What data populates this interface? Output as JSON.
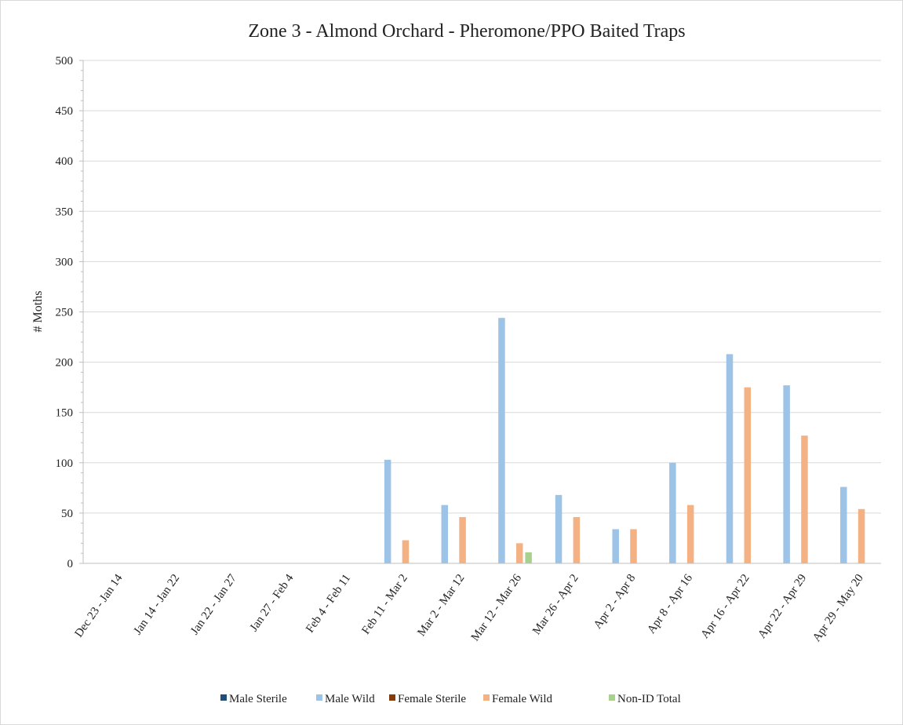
{
  "chart_data": {
    "type": "bar",
    "title": "Zone 3 - Almond Orchard - Pheromone/PPO Baited Traps",
    "ylabel": "# Moths",
    "xlabel": "",
    "ylim": [
      0,
      500
    ],
    "yticks": [
      0,
      50,
      100,
      150,
      200,
      250,
      300,
      350,
      400,
      450,
      500
    ],
    "grid": true,
    "legend_position": "bottom",
    "categories": [
      "Dec 23 - Jan 14",
      "Jan 14 - Jan 22",
      "Jan 22 - Jan 27",
      "Jan 27 - Feb 4",
      "Feb 4 - Feb 11",
      "Feb 11 - Mar 2",
      "Mar 2 - Mar 12",
      "Mar 12 - Mar 26",
      "Mar 26 - Apr 2",
      "Apr 2 - Apr 8",
      "Apr 8 - Apr 16",
      "Apr 16 - Apr 22",
      "Apr 22 - Apr 29",
      "Apr 29 - May 20"
    ],
    "series": [
      {
        "name": "Male Sterile",
        "color": "#1f4e79",
        "values": [
          0,
          0,
          0,
          0,
          0,
          0,
          0,
          0,
          0,
          0,
          0,
          0,
          0,
          0
        ]
      },
      {
        "name": "Male Wild",
        "color": "#9dc3e6",
        "values": [
          0,
          0,
          0,
          0,
          0,
          103,
          58,
          244,
          68,
          34,
          100,
          208,
          177,
          76
        ]
      },
      {
        "name": "Female Sterile",
        "color": "#843c0c",
        "values": [
          0,
          0,
          0,
          0,
          0,
          0,
          0,
          0,
          0,
          0,
          0,
          0,
          0,
          0
        ]
      },
      {
        "name": "Female Wild",
        "color": "#f4b183",
        "values": [
          0,
          0,
          0,
          0,
          0,
          23,
          46,
          20,
          46,
          34,
          58,
          175,
          127,
          54
        ]
      },
      {
        "name": "Non-ID Total",
        "color": "#a9d18e",
        "values": [
          0,
          0,
          0,
          0,
          0,
          0,
          0,
          11,
          0,
          0,
          0,
          0,
          0,
          0
        ]
      }
    ]
  }
}
